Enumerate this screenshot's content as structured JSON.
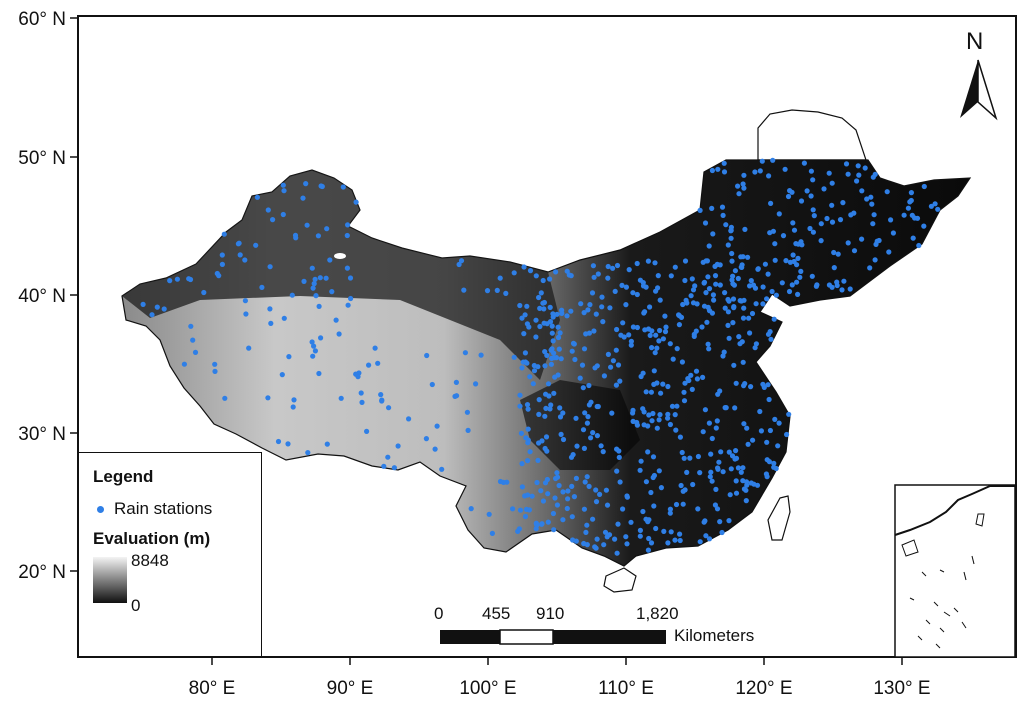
{
  "axes": {
    "y_ticks": [
      "60° N",
      "50° N",
      "40° N",
      "30° N",
      "20° N"
    ],
    "x_ticks": [
      "80° E",
      "90° E",
      "100° E",
      "110° E",
      "120° E",
      "130° E"
    ]
  },
  "legend": {
    "title": "Legend",
    "station_label": "Rain stations",
    "elevation_title": "Evaluation (m)",
    "ramp_max": "8848",
    "ramp_min": "0"
  },
  "scale_bar": {
    "ticks": [
      "0",
      "455",
      "910",
      "1,820"
    ],
    "unit": "Kilometers"
  },
  "north_arrow": {
    "label": "N"
  },
  "colors": {
    "station": "#2f7fe6",
    "land_low": "#0d0d0d",
    "land_high": "#e8e8e8"
  }
}
